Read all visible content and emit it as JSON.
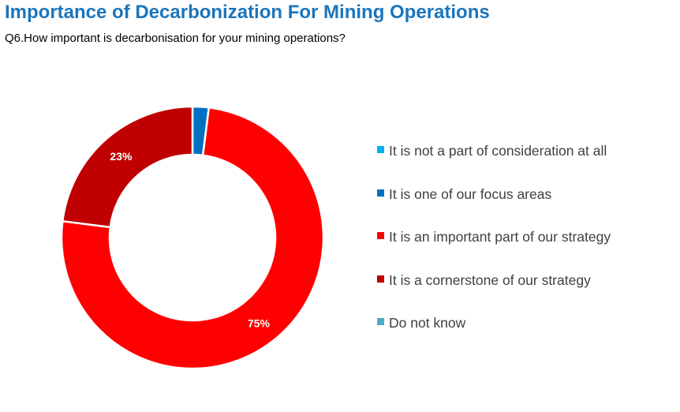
{
  "title": "Importance of Decarbonization For Mining Operations",
  "subtitle": "Q6.How important is decarbonisation for your mining operations?",
  "chart_data": {
    "type": "pie",
    "variant": "donut",
    "title": "Importance of Decarbonization For Mining Operations",
    "subtitle": "Q6.How important is decarbonisation for your mining operations?",
    "categories": [
      "It is not a part of consideration at all",
      "It is one of our focus areas",
      "It is an important part of our strategy",
      "It is a cornerstone of our strategy",
      "Do not know"
    ],
    "values": [
      0,
      2,
      75,
      23,
      0
    ],
    "data_labels": [
      "",
      "",
      "75%",
      "23%",
      ""
    ],
    "colors": [
      "#00b0f0",
      "#0070c0",
      "#ff0000",
      "#c00000",
      "#4bacc6"
    ],
    "legend_position": "right"
  }
}
